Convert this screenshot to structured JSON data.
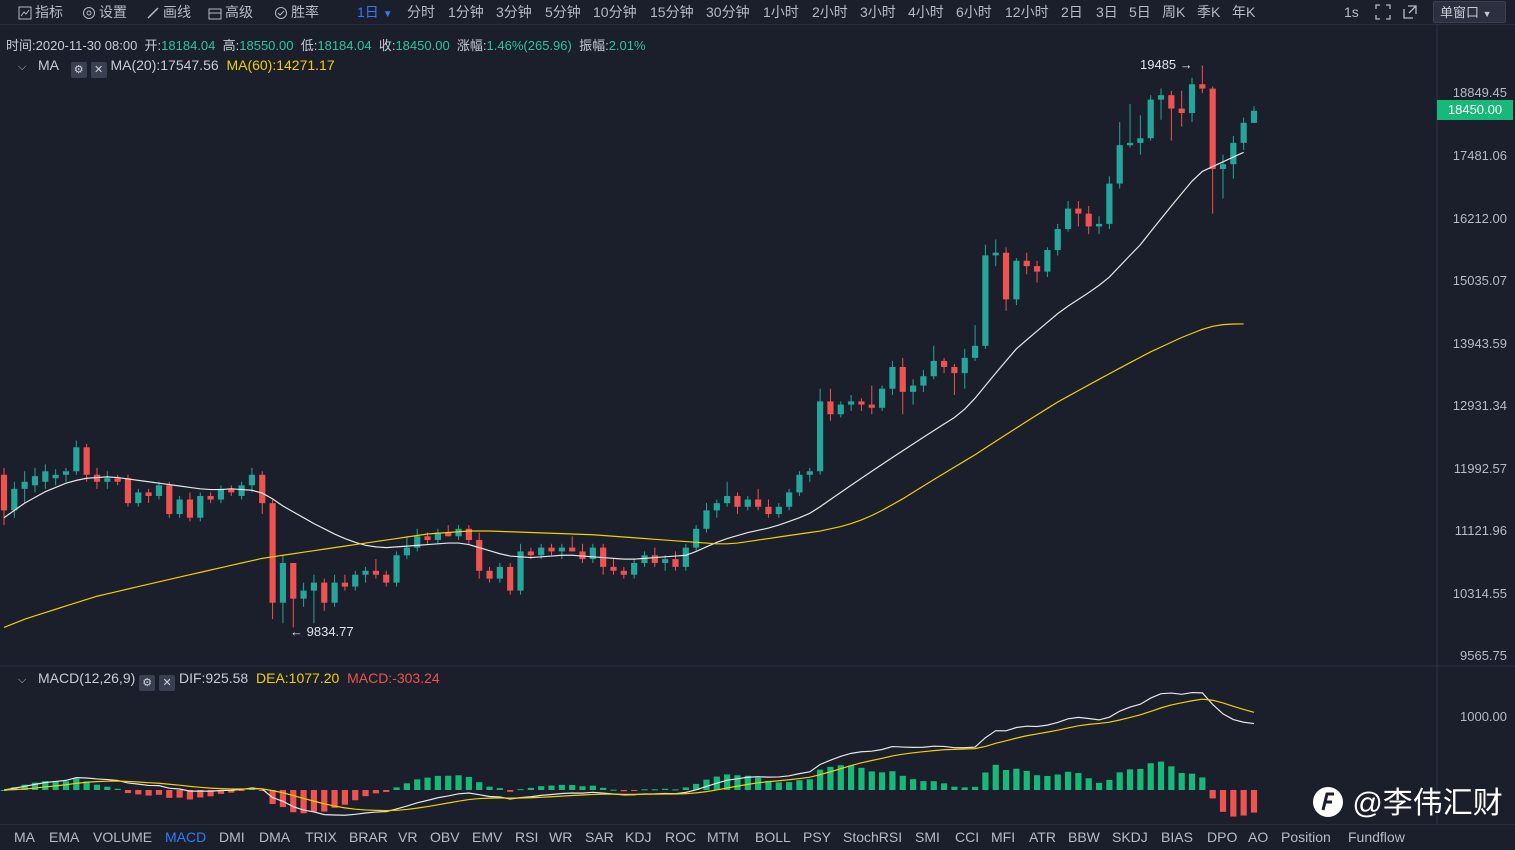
{
  "toolbar": {
    "indicator": "指标",
    "settings": "设置",
    "draw": "画线",
    "advanced": "高级",
    "winrate": "胜率",
    "active_period": "1日",
    "periods": [
      "分时",
      "1分钟",
      "3分钟",
      "5分钟",
      "10分钟",
      "15分钟",
      "30分钟",
      "1小时",
      "2小时",
      "3小时",
      "4小时",
      "6小时",
      "12小时",
      "2日",
      "3日",
      "5日",
      "周K",
      "季K",
      "年K"
    ],
    "interval": "1s",
    "window_mode": "单窗口"
  },
  "info": {
    "time_label": "时间:",
    "time": "2020-11-30 08:00",
    "open_label": "开:",
    "open": "18184.04",
    "high_label": "高:",
    "high": "18550.00",
    "low_label": "低:",
    "low": "18184.04",
    "close_label": "收:",
    "close": "18450.00",
    "change_label": "涨幅:",
    "change": "1.46%(265.96)",
    "amp_label": "振幅:",
    "amp": "2.01%"
  },
  "ma_legend": {
    "name": "MA",
    "ma20": "MA(20):17547.56",
    "ma60": "MA(60):14271.17"
  },
  "macd_legend": {
    "name": "MACD(12,26,9)",
    "dif": "DIF:925.58",
    "dea": "DEA:1077.20",
    "macd": "MACD:-303.24"
  },
  "price_axis": [
    "18849.45",
    "17481.06",
    "16212.00",
    "15035.07",
    "13943.59",
    "12931.34",
    "11992.57",
    "11121.96",
    "10314.55",
    "9565.75"
  ],
  "macd_axis": [
    "1000.00"
  ],
  "current_price": "18450.00",
  "annotations": {
    "high": "19485",
    "low": "9834.77"
  },
  "indicators": [
    "MA",
    "EMA",
    "VOLUME",
    "MACD",
    "DMI",
    "DMA",
    "TRIX",
    "BRAR",
    "VR",
    "OBV",
    "EMV",
    "RSI",
    "WR",
    "SAR",
    "KDJ",
    "ROC",
    "MTM",
    "BOLL",
    "PSY",
    "StochRSI",
    "SMI",
    "CCI",
    "MFI",
    "ATR",
    "BBW",
    "SKDJ",
    "BIAS",
    "DPO",
    "AO",
    "Position",
    "Fundflow"
  ],
  "active_indicator": "MACD",
  "watermark": "@李伟汇财",
  "colors": {
    "up": "#26a69a",
    "down": "#ef5350",
    "ma20": "#e6e6e6",
    "ma60": "#f0d000",
    "accent": "#2f7cf6"
  },
  "chart_data": {
    "type": "candlestick",
    "ylim": [
      9400,
      19700
    ],
    "candles": [
      {
        "o": 11900,
        "h": 12000,
        "l": 11200,
        "c": 11400
      },
      {
        "o": 11400,
        "h": 11800,
        "l": 11300,
        "c": 11700
      },
      {
        "o": 11700,
        "h": 11950,
        "l": 11500,
        "c": 11800
      },
      {
        "o": 11750,
        "h": 12000,
        "l": 11650,
        "c": 11880
      },
      {
        "o": 11800,
        "h": 12050,
        "l": 11700,
        "c": 11950
      },
      {
        "o": 11850,
        "h": 11980,
        "l": 11750,
        "c": 11900
      },
      {
        "o": 11900,
        "h": 12000,
        "l": 11800,
        "c": 11950
      },
      {
        "o": 11950,
        "h": 12400,
        "l": 11900,
        "c": 12300
      },
      {
        "o": 12300,
        "h": 12350,
        "l": 11800,
        "c": 11900
      },
      {
        "o": 11900,
        "h": 12000,
        "l": 11700,
        "c": 11800
      },
      {
        "o": 11800,
        "h": 11950,
        "l": 11700,
        "c": 11850
      },
      {
        "o": 11850,
        "h": 11900,
        "l": 11750,
        "c": 11800
      },
      {
        "o": 11850,
        "h": 11900,
        "l": 11450,
        "c": 11500
      },
      {
        "o": 11500,
        "h": 11700,
        "l": 11450,
        "c": 11650
      },
      {
        "o": 11650,
        "h": 11700,
        "l": 11500,
        "c": 11600
      },
      {
        "o": 11600,
        "h": 11800,
        "l": 11550,
        "c": 11750
      },
      {
        "o": 11750,
        "h": 11800,
        "l": 11300,
        "c": 11350
      },
      {
        "o": 11350,
        "h": 11600,
        "l": 11300,
        "c": 11550
      },
      {
        "o": 11550,
        "h": 11650,
        "l": 11250,
        "c": 11300
      },
      {
        "o": 11300,
        "h": 11650,
        "l": 11250,
        "c": 11600
      },
      {
        "o": 11600,
        "h": 11650,
        "l": 11500,
        "c": 11550
      },
      {
        "o": 11550,
        "h": 11750,
        "l": 11500,
        "c": 11700
      },
      {
        "o": 11700,
        "h": 11750,
        "l": 11600,
        "c": 11650
      },
      {
        "o": 11600,
        "h": 11800,
        "l": 11550,
        "c": 11750
      },
      {
        "o": 11750,
        "h": 12000,
        "l": 11650,
        "c": 11900
      },
      {
        "o": 11900,
        "h": 11950,
        "l": 11350,
        "c": 11500
      },
      {
        "o": 11500,
        "h": 11550,
        "l": 10000,
        "c": 10200
      },
      {
        "o": 10200,
        "h": 10800,
        "l": 9950,
        "c": 10700
      },
      {
        "o": 10700,
        "h": 10700,
        "l": 9900,
        "c": 10250
      },
      {
        "o": 10250,
        "h": 10450,
        "l": 10150,
        "c": 10350
      },
      {
        "o": 10350,
        "h": 10550,
        "l": 9950,
        "c": 10450
      },
      {
        "o": 10450,
        "h": 10500,
        "l": 10100,
        "c": 10200
      },
      {
        "o": 10200,
        "h": 10550,
        "l": 10150,
        "c": 10450
      },
      {
        "o": 10450,
        "h": 10550,
        "l": 10350,
        "c": 10400
      },
      {
        "o": 10400,
        "h": 10600,
        "l": 10350,
        "c": 10550
      },
      {
        "o": 10550,
        "h": 10650,
        "l": 10450,
        "c": 10600
      },
      {
        "o": 10600,
        "h": 10750,
        "l": 10500,
        "c": 10550
      },
      {
        "o": 10550,
        "h": 10600,
        "l": 10400,
        "c": 10450
      },
      {
        "o": 10450,
        "h": 10850,
        "l": 10400,
        "c": 10800
      },
      {
        "o": 10800,
        "h": 11050,
        "l": 10750,
        "c": 10900
      },
      {
        "o": 10900,
        "h": 11150,
        "l": 10850,
        "c": 11050
      },
      {
        "o": 11050,
        "h": 11100,
        "l": 10950,
        "c": 11000
      },
      {
        "o": 11000,
        "h": 11150,
        "l": 10950,
        "c": 11100
      },
      {
        "o": 11100,
        "h": 11200,
        "l": 11050,
        "c": 11050
      },
      {
        "o": 11050,
        "h": 11200,
        "l": 11000,
        "c": 11150
      },
      {
        "o": 11150,
        "h": 11200,
        "l": 10950,
        "c": 11000
      },
      {
        "o": 11000,
        "h": 11100,
        "l": 10500,
        "c": 10600
      },
      {
        "o": 10600,
        "h": 10650,
        "l": 10450,
        "c": 10500
      },
      {
        "o": 10500,
        "h": 10700,
        "l": 10450,
        "c": 10650
      },
      {
        "o": 10650,
        "h": 10700,
        "l": 10300,
        "c": 10350
      },
      {
        "o": 10350,
        "h": 10950,
        "l": 10300,
        "c": 10850
      },
      {
        "o": 10850,
        "h": 10900,
        "l": 10750,
        "c": 10800
      },
      {
        "o": 10800,
        "h": 10950,
        "l": 10750,
        "c": 10900
      },
      {
        "o": 10900,
        "h": 10950,
        "l": 10800,
        "c": 10850
      },
      {
        "o": 10850,
        "h": 10950,
        "l": 10750,
        "c": 10900
      },
      {
        "o": 10900,
        "h": 11050,
        "l": 10850,
        "c": 10850
      },
      {
        "o": 10850,
        "h": 10950,
        "l": 10700,
        "c": 10750
      },
      {
        "o": 10750,
        "h": 10950,
        "l": 10700,
        "c": 10900
      },
      {
        "o": 10900,
        "h": 10950,
        "l": 10550,
        "c": 10650
      },
      {
        "o": 10650,
        "h": 10750,
        "l": 10550,
        "c": 10600
      },
      {
        "o": 10600,
        "h": 10650,
        "l": 10500,
        "c": 10550
      },
      {
        "o": 10550,
        "h": 10750,
        "l": 10500,
        "c": 10700
      },
      {
        "o": 10700,
        "h": 10850,
        "l": 10650,
        "c": 10800
      },
      {
        "o": 10800,
        "h": 10900,
        "l": 10650,
        "c": 10700
      },
      {
        "o": 10700,
        "h": 10800,
        "l": 10600,
        "c": 10750
      },
      {
        "o": 10750,
        "h": 10850,
        "l": 10600,
        "c": 10650
      },
      {
        "o": 10650,
        "h": 10950,
        "l": 10600,
        "c": 10900
      },
      {
        "o": 10900,
        "h": 11200,
        "l": 10850,
        "c": 11150
      },
      {
        "o": 11150,
        "h": 11500,
        "l": 11100,
        "c": 11400
      },
      {
        "o": 11400,
        "h": 11550,
        "l": 11300,
        "c": 11500
      },
      {
        "o": 11500,
        "h": 11800,
        "l": 11450,
        "c": 11600
      },
      {
        "o": 11600,
        "h": 11650,
        "l": 11350,
        "c": 11450
      },
      {
        "o": 11450,
        "h": 11600,
        "l": 11400,
        "c": 11550
      },
      {
        "o": 11550,
        "h": 11700,
        "l": 11400,
        "c": 11450
      },
      {
        "o": 11450,
        "h": 11550,
        "l": 11300,
        "c": 11350
      },
      {
        "o": 11350,
        "h": 11500,
        "l": 11300,
        "c": 11450
      },
      {
        "o": 11450,
        "h": 11700,
        "l": 11400,
        "c": 11650
      },
      {
        "o": 11650,
        "h": 11950,
        "l": 11600,
        "c": 11900
      },
      {
        "o": 11900,
        "h": 12000,
        "l": 11800,
        "c": 11950
      },
      {
        "o": 11950,
        "h": 13200,
        "l": 11900,
        "c": 13000
      },
      {
        "o": 13000,
        "h": 13200,
        "l": 12700,
        "c": 12800
      },
      {
        "o": 12800,
        "h": 13000,
        "l": 12750,
        "c": 12950
      },
      {
        "o": 12950,
        "h": 13100,
        "l": 12850,
        "c": 13000
      },
      {
        "o": 13000,
        "h": 13050,
        "l": 12850,
        "c": 12950
      },
      {
        "o": 12950,
        "h": 13250,
        "l": 12800,
        "c": 12900
      },
      {
        "o": 12900,
        "h": 13250,
        "l": 12850,
        "c": 13200
      },
      {
        "o": 13200,
        "h": 13650,
        "l": 13100,
        "c": 13550
      },
      {
        "o": 13550,
        "h": 13700,
        "l": 12800,
        "c": 13150
      },
      {
        "o": 13150,
        "h": 13350,
        "l": 12950,
        "c": 13250
      },
      {
        "o": 13250,
        "h": 13500,
        "l": 13150,
        "c": 13400
      },
      {
        "o": 13400,
        "h": 13900,
        "l": 13350,
        "c": 13650
      },
      {
        "o": 13650,
        "h": 13700,
        "l": 13450,
        "c": 13550
      },
      {
        "o": 13550,
        "h": 13600,
        "l": 13100,
        "c": 13450
      },
      {
        "o": 13450,
        "h": 13850,
        "l": 13200,
        "c": 13700
      },
      {
        "o": 13700,
        "h": 14250,
        "l": 13650,
        "c": 13900
      },
      {
        "o": 13900,
        "h": 15700,
        "l": 13850,
        "c": 15500
      },
      {
        "o": 15500,
        "h": 15800,
        "l": 15300,
        "c": 15550
      },
      {
        "o": 15550,
        "h": 15650,
        "l": 14500,
        "c": 14700
      },
      {
        "o": 14700,
        "h": 15450,
        "l": 14600,
        "c": 15400
      },
      {
        "o": 15400,
        "h": 15550,
        "l": 15150,
        "c": 15300
      },
      {
        "o": 15300,
        "h": 15400,
        "l": 15000,
        "c": 15200
      },
      {
        "o": 15200,
        "h": 15650,
        "l": 15100,
        "c": 15600
      },
      {
        "o": 15600,
        "h": 16100,
        "l": 15500,
        "c": 16000
      },
      {
        "o": 16000,
        "h": 16550,
        "l": 15950,
        "c": 16400
      },
      {
        "o": 16400,
        "h": 16550,
        "l": 16050,
        "c": 16300
      },
      {
        "o": 16300,
        "h": 16450,
        "l": 15900,
        "c": 16050
      },
      {
        "o": 16050,
        "h": 16250,
        "l": 15900,
        "c": 16100
      },
      {
        "o": 16100,
        "h": 17050,
        "l": 16000,
        "c": 16900
      },
      {
        "o": 16900,
        "h": 18200,
        "l": 16800,
        "c": 17700
      },
      {
        "o": 17700,
        "h": 18600,
        "l": 17650,
        "c": 17750
      },
      {
        "o": 17750,
        "h": 18350,
        "l": 17500,
        "c": 17850
      },
      {
        "o": 17850,
        "h": 18800,
        "l": 17800,
        "c": 18700
      },
      {
        "o": 18700,
        "h": 18950,
        "l": 18250,
        "c": 18800
      },
      {
        "o": 18800,
        "h": 18900,
        "l": 17800,
        "c": 18500
      },
      {
        "o": 18500,
        "h": 18900,
        "l": 18100,
        "c": 18400
      },
      {
        "o": 18400,
        "h": 19200,
        "l": 18200,
        "c": 19050
      },
      {
        "o": 19050,
        "h": 19485,
        "l": 18850,
        "c": 18950
      },
      {
        "o": 18950,
        "h": 19000,
        "l": 16300,
        "c": 17200
      },
      {
        "o": 17200,
        "h": 17500,
        "l": 16600,
        "c": 17300
      },
      {
        "o": 17300,
        "h": 17900,
        "l": 17000,
        "c": 17750
      },
      {
        "o": 17750,
        "h": 18300,
        "l": 17600,
        "c": 18184
      },
      {
        "o": 18184,
        "h": 18550,
        "l": 18184,
        "c": 18450
      }
    ],
    "ma20": [
      11300,
      11400,
      11500,
      11580,
      11660,
      11720,
      11780,
      11820,
      11850,
      11860,
      11870,
      11860,
      11840,
      11820,
      11800,
      11780,
      11760,
      11740,
      11720,
      11700,
      11690,
      11690,
      11700,
      11690,
      11680,
      11640,
      11560,
      11460,
      11380,
      11300,
      11220,
      11150,
      11080,
      11020,
      10970,
      10930,
      10910,
      10900,
      10910,
      10920,
      10930,
      10940,
      10950,
      10960,
      10960,
      10940,
      10900,
      10860,
      10820,
      10790,
      10780,
      10770,
      10780,
      10790,
      10800,
      10800,
      10790,
      10780,
      10770,
      10760,
      10750,
      10750,
      10760,
      10770,
      10780,
      10790,
      10800,
      10850,
      10910,
      10970,
      11020,
      11060,
      11100,
      11130,
      11160,
      11200,
      11250,
      11300,
      11360,
      11450,
      11550,
      11650,
      11750,
      11850,
      11950,
      12050,
      12150,
      12250,
      12350,
      12450,
      12550,
      12650,
      12750,
      12880,
      13050,
      13250,
      13450,
      13650,
      13850,
      14000,
      14150,
      14300,
      14450,
      14580,
      14700,
      14820,
      14950,
      15100,
      15300,
      15500,
      15700,
      15950,
      16200,
      16450,
      16700,
      16950,
      17150,
      17250,
      17350,
      17450,
      17550
    ],
    "ma60": [
      9900,
      9950,
      10000,
      10040,
      10080,
      10120,
      10160,
      10200,
      10240,
      10280,
      10310,
      10340,
      10370,
      10400,
      10430,
      10460,
      10490,
      10520,
      10550,
      10580,
      10610,
      10640,
      10670,
      10700,
      10730,
      10760,
      10780,
      10800,
      10820,
      10840,
      10860,
      10880,
      10900,
      10920,
      10940,
      10960,
      10980,
      11000,
      11020,
      11040,
      11060,
      11080,
      11090,
      11100,
      11110,
      11120,
      11120,
      11120,
      11115,
      11110,
      11105,
      11100,
      11095,
      11090,
      11085,
      11080,
      11075,
      11070,
      11060,
      11050,
      11040,
      11030,
      11020,
      11010,
      11000,
      10990,
      10980,
      10970,
      10960,
      10950,
      10950,
      10960,
      10980,
      11000,
      11020,
      11040,
      11060,
      11080,
      11100,
      11120,
      11150,
      11180,
      11220,
      11270,
      11330,
      11400,
      11480,
      11560,
      11650,
      11740,
      11830,
      11920,
      12010,
      12100,
      12190,
      12290,
      12390,
      12490,
      12590,
      12690,
      12790,
      12890,
      12990,
      13080,
      13170,
      13260,
      13350,
      13440,
      13530,
      13620,
      13710,
      13800,
      13880,
      13960,
      14040,
      14110,
      14180,
      14230,
      14260,
      14270,
      14271
    ]
  }
}
